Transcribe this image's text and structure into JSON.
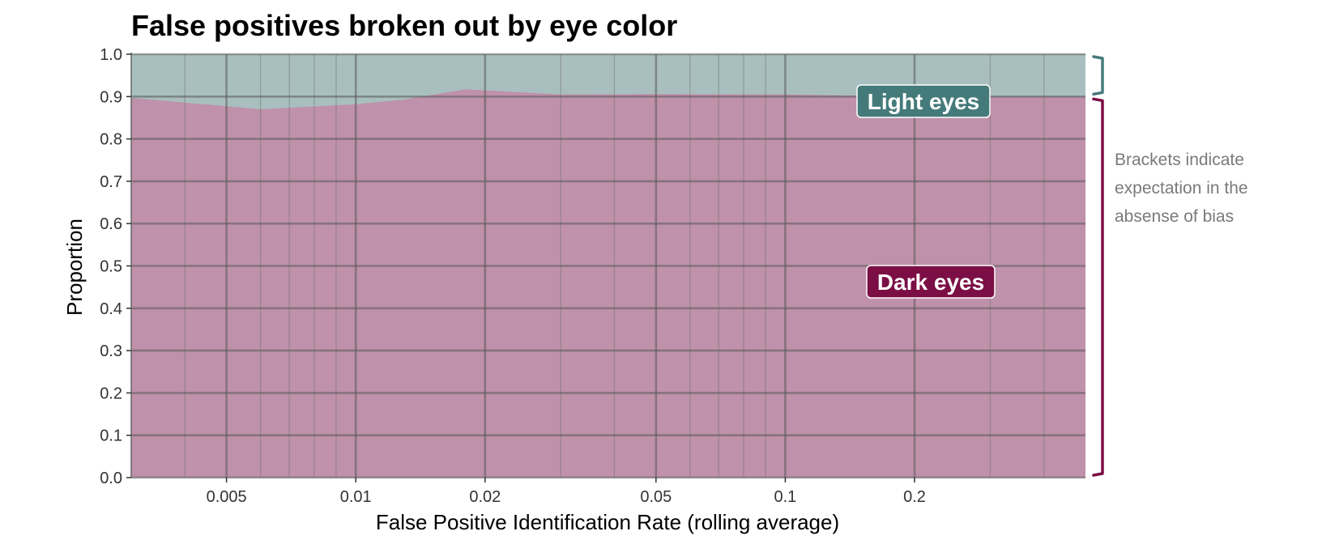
{
  "chart_data": {
    "type": "area",
    "title": "False positives broken out by eye color",
    "xlabel": "False Positive Identification Rate (rolling average)",
    "ylabel": "Proportion",
    "x_scale": "log",
    "xlim": [
      0.003,
      0.5
    ],
    "ylim": [
      0,
      1
    ],
    "x_ticks": [
      0.005,
      0.01,
      0.02,
      0.05,
      0.1,
      0.2
    ],
    "x_tick_labels": [
      "0.005",
      "0.01",
      "0.02",
      "0.05",
      "0.1",
      "0.2"
    ],
    "y_ticks": [
      0.0,
      0.1,
      0.2,
      0.3,
      0.4,
      0.5,
      0.6,
      0.7,
      0.8,
      0.9,
      1.0
    ],
    "y_tick_labels": [
      "0.0",
      "0.1",
      "0.2",
      "0.3",
      "0.4",
      "0.5",
      "0.6",
      "0.7",
      "0.8",
      "0.9",
      "1.0"
    ],
    "grid": true,
    "stacked": true,
    "x": [
      0.003,
      0.006,
      0.01,
      0.013,
      0.018,
      0.03,
      0.05,
      0.1,
      0.2,
      0.5
    ],
    "series": [
      {
        "name": "Dark eyes",
        "color": "#7b0f45",
        "fill": "#bf91aa",
        "values": [
          0.897,
          0.87,
          0.882,
          0.893,
          0.917,
          0.905,
          0.906,
          0.905,
          0.9,
          0.9
        ]
      },
      {
        "name": "Light eyes",
        "color": "#457a7a",
        "fill": "#a9bfbf",
        "values": [
          0.103,
          0.13,
          0.118,
          0.107,
          0.083,
          0.095,
          0.094,
          0.095,
          0.1,
          0.1
        ]
      }
    ],
    "brackets": [
      {
        "series": "Light eyes",
        "from": 0.9,
        "to": 1.0,
        "color": "#457a7a"
      },
      {
        "series": "Dark eyes",
        "from": 0.0,
        "to": 0.9,
        "color": "#7b0f45"
      }
    ],
    "annotation": [
      "Brackets indicate",
      "expectation in the",
      "absense of bias"
    ]
  }
}
